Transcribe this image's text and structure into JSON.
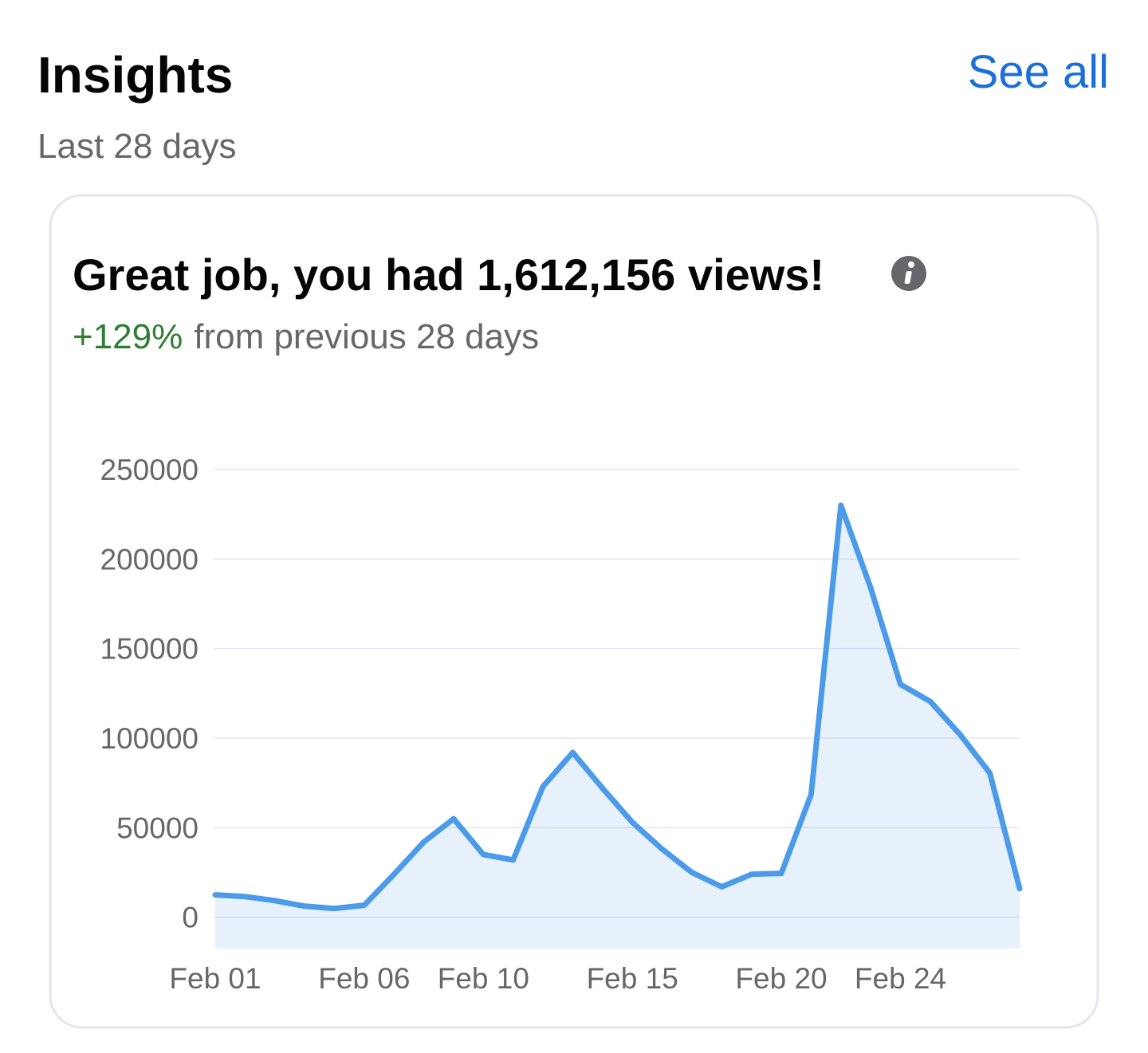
{
  "header": {
    "title": "Insights",
    "link": "See all",
    "subtitle": "Last 28 days"
  },
  "card": {
    "headline": "Great job, you had 1,612,156 views!",
    "change": "+129%",
    "change_text": "from previous 28 days"
  },
  "chart_data": {
    "type": "area",
    "categories": [
      "Feb 01",
      null,
      null,
      null,
      null,
      "Feb 06",
      null,
      null,
      null,
      "Feb 10",
      null,
      null,
      null,
      null,
      "Feb 15",
      null,
      null,
      null,
      null,
      "Feb 20",
      null,
      null,
      null,
      "Feb 24",
      null,
      null,
      null,
      null
    ],
    "values": [
      12500,
      11500,
      9300,
      6200,
      4900,
      6700,
      24000,
      42000,
      55000,
      35000,
      32000,
      73000,
      92000,
      72000,
      53000,
      38000,
      25000,
      17000,
      24000,
      24500,
      68500,
      230000,
      184000,
      130000,
      120500,
      102000,
      80500,
      16000
    ],
    "color": "#4c9be8",
    "ylim": [
      -17500,
      250000
    ],
    "yticks": [
      0,
      50000,
      100000,
      150000,
      200000,
      250000
    ],
    "grid": true
  }
}
